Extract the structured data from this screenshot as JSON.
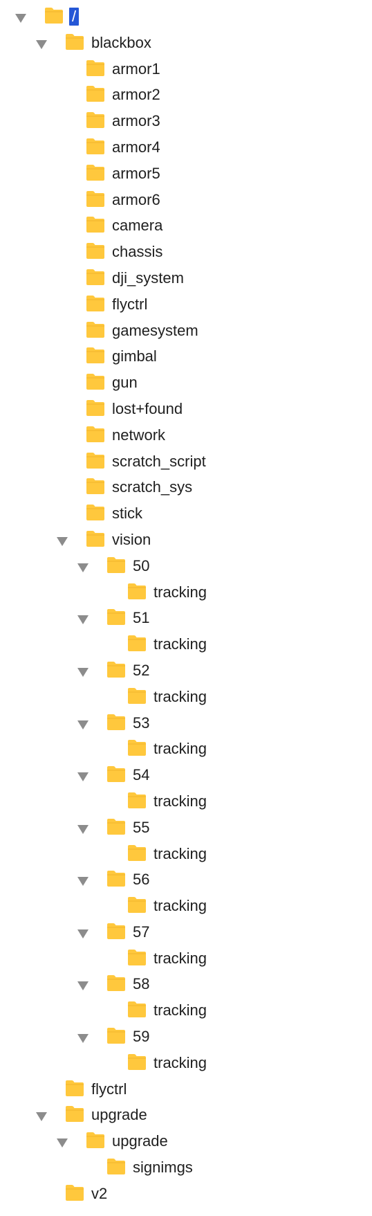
{
  "tree": {
    "selected_color": "#2557d6",
    "folder_color": "#ffc83d",
    "rows": [
      {
        "label": "/",
        "depth": 0,
        "expanded": true,
        "selected": true
      },
      {
        "label": "blackbox",
        "depth": 1,
        "expanded": true
      },
      {
        "label": "armor1",
        "depth": 2
      },
      {
        "label": "armor2",
        "depth": 2
      },
      {
        "label": "armor3",
        "depth": 2
      },
      {
        "label": "armor4",
        "depth": 2
      },
      {
        "label": "armor5",
        "depth": 2
      },
      {
        "label": "armor6",
        "depth": 2
      },
      {
        "label": "camera",
        "depth": 2
      },
      {
        "label": "chassis",
        "depth": 2
      },
      {
        "label": "dji_system",
        "depth": 2
      },
      {
        "label": "flyctrl",
        "depth": 2
      },
      {
        "label": "gamesystem",
        "depth": 2
      },
      {
        "label": "gimbal",
        "depth": 2
      },
      {
        "label": "gun",
        "depth": 2
      },
      {
        "label": "lost+found",
        "depth": 2
      },
      {
        "label": "network",
        "depth": 2
      },
      {
        "label": "scratch_script",
        "depth": 2
      },
      {
        "label": "scratch_sys",
        "depth": 2
      },
      {
        "label": "stick",
        "depth": 2
      },
      {
        "label": "vision",
        "depth": 2,
        "expanded": true
      },
      {
        "label": "50",
        "depth": 3,
        "expanded": true
      },
      {
        "label": "tracking",
        "depth": 4
      },
      {
        "label": "51",
        "depth": 3,
        "expanded": true
      },
      {
        "label": "tracking",
        "depth": 4
      },
      {
        "label": "52",
        "depth": 3,
        "expanded": true
      },
      {
        "label": "tracking",
        "depth": 4
      },
      {
        "label": "53",
        "depth": 3,
        "expanded": true
      },
      {
        "label": "tracking",
        "depth": 4
      },
      {
        "label": "54",
        "depth": 3,
        "expanded": true
      },
      {
        "label": "tracking",
        "depth": 4
      },
      {
        "label": "55",
        "depth": 3,
        "expanded": true
      },
      {
        "label": "tracking",
        "depth": 4
      },
      {
        "label": "56",
        "depth": 3,
        "expanded": true
      },
      {
        "label": "tracking",
        "depth": 4
      },
      {
        "label": "57",
        "depth": 3,
        "expanded": true
      },
      {
        "label": "tracking",
        "depth": 4
      },
      {
        "label": "58",
        "depth": 3,
        "expanded": true
      },
      {
        "label": "tracking",
        "depth": 4
      },
      {
        "label": "59",
        "depth": 3,
        "expanded": true
      },
      {
        "label": "tracking",
        "depth": 4
      },
      {
        "label": "flyctrl",
        "depth": 1
      },
      {
        "label": "upgrade",
        "depth": 1,
        "expanded": true
      },
      {
        "label": "upgrade",
        "depth": 2,
        "expanded": true
      },
      {
        "label": "signimgs",
        "depth": 3
      },
      {
        "label": "v2",
        "depth": 1
      }
    ]
  }
}
